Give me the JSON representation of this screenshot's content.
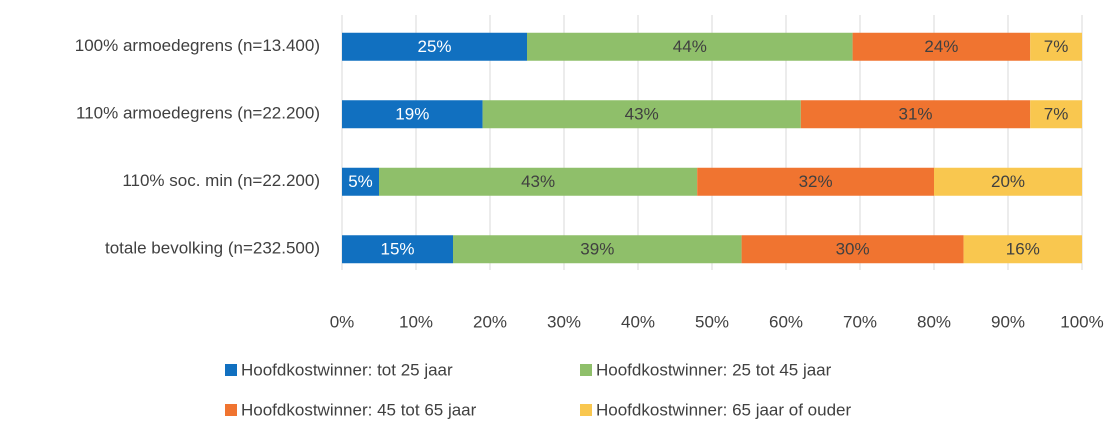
{
  "chart_data": {
    "type": "bar",
    "orientation": "horizontal",
    "stacked": true,
    "categories": [
      "100% armoedegrens (n=13.400)",
      "110% armoedegrens (n=22.200)",
      "110% soc. min (n=22.200)",
      "totale bevolking (n=232.500)"
    ],
    "series": [
      {
        "name": "Hoofdkostwinner: tot 25 jaar",
        "color": "#1170c0",
        "values": [
          25,
          19,
          5,
          15
        ],
        "value_labels": [
          "25%",
          "19%",
          "5%",
          "15%"
        ]
      },
      {
        "name": "Hoofdkostwinner: 25 tot 45 jaar",
        "color": "#8fbf6a",
        "values": [
          44,
          43,
          43,
          39
        ],
        "value_labels": [
          "44%",
          "43%",
          "43%",
          "39%"
        ]
      },
      {
        "name": "Hoofdkostwinner: 45 tot 65 jaar",
        "color": "#f07430",
        "values": [
          24,
          31,
          32,
          30
        ],
        "value_labels": [
          "24%",
          "31%",
          "32%",
          "30%"
        ]
      },
      {
        "name": "Hoofdkostwinner: 65 jaar of ouder",
        "color": "#f9c74f",
        "values": [
          7,
          7,
          20,
          16
        ],
        "value_labels": [
          "7%",
          "7%",
          "20%",
          "16%"
        ]
      }
    ],
    "xlim": [
      0,
      100
    ],
    "xticks": [
      {
        "value": 0,
        "label": "0%"
      },
      {
        "value": 10,
        "label": "10%"
      },
      {
        "value": 20,
        "label": "20%"
      },
      {
        "value": 30,
        "label": "30%"
      },
      {
        "value": 40,
        "label": "40%"
      },
      {
        "value": 50,
        "label": "50%"
      },
      {
        "value": 60,
        "label": "60%"
      },
      {
        "value": 70,
        "label": "70%"
      },
      {
        "value": 80,
        "label": "80%"
      },
      {
        "value": 90,
        "label": "90%"
      },
      {
        "value": 100,
        "label": "100%"
      }
    ],
    "grid": true,
    "legend": "bottom"
  }
}
